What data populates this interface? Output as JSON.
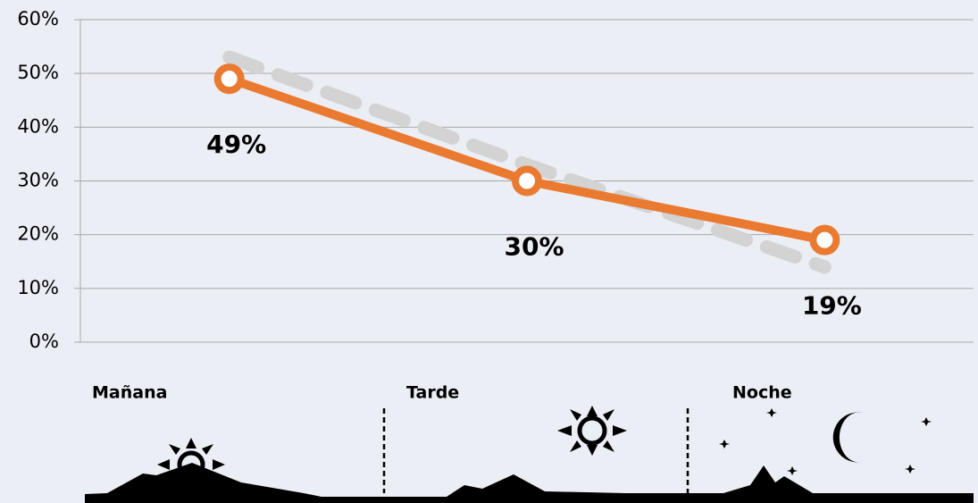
{
  "chart_data": {
    "type": "line",
    "categories": [
      "Mañana",
      "Tarde",
      "Noche"
    ],
    "series": [
      {
        "color": "#d3d3d3",
        "dashed": true,
        "values": [
          53,
          33,
          14
        ]
      },
      {
        "color": "#e97a30",
        "dashed": false,
        "markers": true,
        "values": [
          49,
          30,
          19
        ],
        "value_labels": [
          "49%",
          "30%",
          "19%"
        ]
      }
    ],
    "ylim": [
      0,
      60
    ],
    "yticks": [
      {
        "value": 0,
        "label": "0%"
      },
      {
        "value": 10,
        "label": "10%"
      },
      {
        "value": 20,
        "label": "20%"
      },
      {
        "value": 30,
        "label": "30%"
      },
      {
        "value": 40,
        "label": "40%"
      },
      {
        "value": 50,
        "label": "50%"
      },
      {
        "value": 60,
        "label": "60%"
      }
    ],
    "grid": true
  }
}
